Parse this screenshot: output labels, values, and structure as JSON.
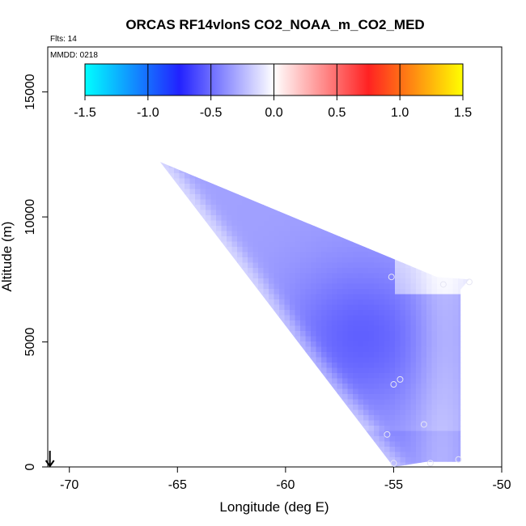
{
  "chart_data": {
    "type": "heatmap",
    "title": "ORCAS RF14vlonS CO2_NOAA_m_CO2_MED",
    "flights_label": "Flts: 14",
    "date_label": "MMDD: 0218",
    "xlabel": "Longitude (deg E)",
    "ylabel": "Altitude (m)",
    "xlim": [
      -71,
      -50
    ],
    "ylim": [
      0,
      16800
    ],
    "x_ticks": [
      -70,
      -65,
      -60,
      -55,
      -50
    ],
    "x_tick_labels": [
      "-70",
      "-65",
      "-60",
      "-55",
      "-50"
    ],
    "y_ticks": [
      0,
      5000,
      10000,
      15000
    ],
    "y_tick_labels": [
      "0",
      "5000",
      "10000",
      "15000"
    ],
    "colorbar": {
      "range": [
        -1.5,
        1.5
      ],
      "ticks": [
        -1.5,
        -1.0,
        -0.5,
        0.0,
        0.5,
        1.0,
        1.5
      ],
      "tick_labels": [
        "-1.5",
        "-1.0",
        "-0.5",
        "0.0",
        "0.5",
        "1.0",
        "1.5"
      ],
      "colors": [
        "#00ffff",
        "#2222ff",
        "#ffffff",
        "#ff2222",
        "#ffff00"
      ]
    },
    "region_polygon": [
      [
        -65.8,
        12200
      ],
      [
        -53.0,
        7600
      ],
      [
        -51.5,
        7500
      ],
      [
        -51.9,
        7100
      ],
      [
        -51.9,
        200
      ],
      [
        -53.5,
        200
      ],
      [
        -55.0,
        0
      ]
    ],
    "sample_points": [
      {
        "lon": -55.1,
        "alt": 7600
      },
      {
        "lon": -52.7,
        "alt": 7300
      },
      {
        "lon": -51.5,
        "alt": 7400
      },
      {
        "lon": -54.7,
        "alt": 3500
      },
      {
        "lon": -55.0,
        "alt": 3300
      },
      {
        "lon": -53.6,
        "alt": 1700
      },
      {
        "lon": -55.3,
        "alt": 1300
      },
      {
        "lon": -52.0,
        "alt": 300
      },
      {
        "lon": -53.3,
        "alt": 150
      },
      {
        "lon": -55.0,
        "alt": 150
      }
    ],
    "arrow": {
      "lon": -70.9,
      "direction": "down"
    }
  }
}
